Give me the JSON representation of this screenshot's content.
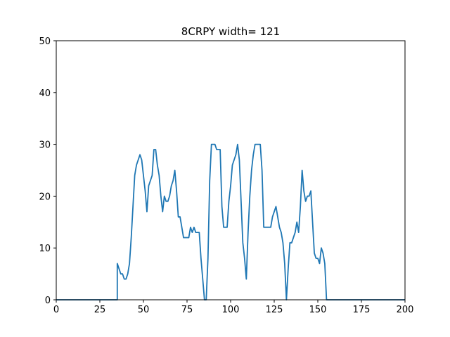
{
  "chart_data": {
    "type": "line",
    "title": "8CRPY width= 121",
    "xlabel": "",
    "ylabel": "",
    "xlim": [
      0,
      200
    ],
    "ylim": [
      0,
      50
    ],
    "xticks": [
      0,
      25,
      50,
      75,
      100,
      125,
      150,
      175,
      200
    ],
    "yticks": [
      0,
      10,
      20,
      30,
      40,
      50
    ],
    "grid": false,
    "line_color": "#1f77b4",
    "series": [
      {
        "x": [
          0,
          35,
          35,
          36,
          37,
          38,
          39,
          40,
          41,
          42,
          43,
          44,
          45,
          46,
          47,
          48,
          49,
          50,
          51,
          52,
          53,
          54,
          55,
          56,
          57,
          58,
          59,
          60,
          61,
          62,
          63,
          64,
          65,
          66,
          67,
          68,
          69,
          70,
          71,
          72,
          73,
          74,
          75,
          76,
          77,
          78,
          79,
          80,
          81,
          82,
          83,
          84,
          85,
          86,
          87,
          88,
          89,
          90,
          91,
          92,
          93,
          94,
          95,
          96,
          97,
          98,
          99,
          100,
          101,
          102,
          103,
          104,
          105,
          106,
          107,
          108,
          109,
          110,
          111,
          112,
          113,
          114,
          115,
          116,
          117,
          118,
          119,
          120,
          121,
          122,
          123,
          124,
          125,
          126,
          127,
          128,
          129,
          130,
          131,
          132,
          133,
          134,
          135,
          136,
          137,
          138,
          139,
          140,
          141,
          142,
          143,
          144,
          145,
          146,
          147,
          148,
          149,
          150,
          151,
          152,
          153,
          154,
          155,
          156,
          157,
          200
        ],
        "y": [
          0,
          0,
          7,
          6,
          5,
          5,
          4,
          4,
          5,
          7,
          12,
          18,
          24,
          26,
          27,
          28,
          27,
          24,
          21,
          17,
          22,
          23,
          24,
          29,
          29,
          26,
          24,
          20,
          17,
          20,
          19,
          19,
          20,
          22,
          23,
          25,
          21,
          16,
          16,
          14,
          12,
          12,
          12,
          12,
          14,
          13,
          14,
          13,
          13,
          13,
          8,
          4,
          0,
          0,
          8,
          23,
          30,
          30,
          30,
          29,
          29,
          29,
          18,
          14,
          14,
          14,
          19,
          22,
          26,
          27,
          28,
          30,
          27,
          19,
          11,
          8,
          4,
          13,
          20,
          25,
          28,
          30,
          30,
          30,
          30,
          25,
          14,
          14,
          14,
          14,
          14,
          16,
          17,
          18,
          16,
          14,
          13,
          11,
          7,
          0,
          6,
          11,
          11,
          12,
          13,
          15,
          13,
          18,
          25,
          21,
          19,
          20,
          20,
          21,
          15,
          9,
          8,
          8,
          7,
          10,
          9,
          7,
          0,
          0,
          0,
          0
        ]
      }
    ]
  }
}
